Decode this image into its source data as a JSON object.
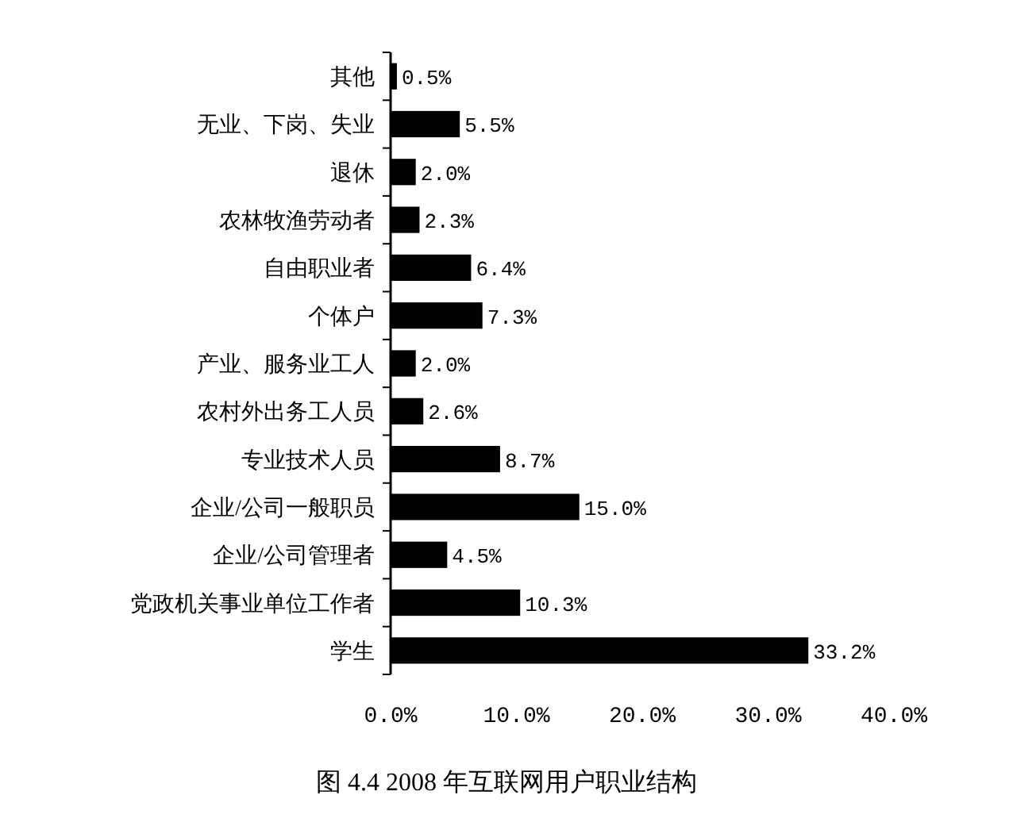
{
  "chart_data": {
    "type": "bar",
    "orientation": "horizontal",
    "title": "图 4.4 2008 年互联网用户职业结构",
    "categories": [
      "其他",
      "无业、下岗、失业",
      "退休",
      "农林牧渔劳动者",
      "自由职业者",
      "个体户",
      "产业、服务业工人",
      "农村外出务工人员",
      "专业技术人员",
      "企业/公司一般职员",
      "企业/公司管理者",
      "党政机关事业单位工作者",
      "学生"
    ],
    "values": [
      0.5,
      5.5,
      2.0,
      2.3,
      6.4,
      7.3,
      2.0,
      2.6,
      8.7,
      15.0,
      4.5,
      10.3,
      33.2
    ],
    "value_labels": [
      "0.5%",
      "5.5%",
      "2.0%",
      "2.3%",
      "6.4%",
      "7.3%",
      "2.0%",
      "2.6%",
      "8.7%",
      "15.0%",
      "4.5%",
      "10.3%",
      "33.2%"
    ],
    "color": "#000000",
    "xlim": [
      0,
      40
    ],
    "xticks": [
      {
        "value": 0,
        "label": "0.0%"
      },
      {
        "value": 10,
        "label": "10.0%"
      },
      {
        "value": 20,
        "label": "20.0%"
      },
      {
        "value": 30,
        "label": "30.0%"
      },
      {
        "value": 40,
        "label": "40.0%"
      }
    ],
    "grid": false
  }
}
